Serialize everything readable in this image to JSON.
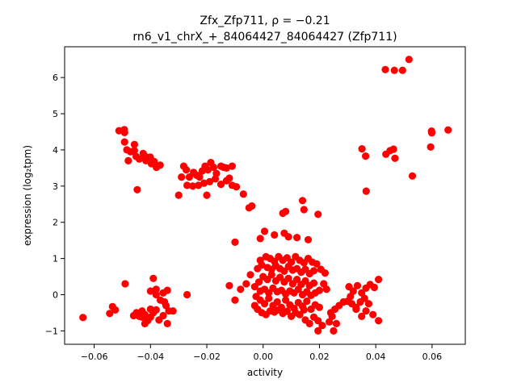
{
  "chart_data": {
    "type": "scatter",
    "title_line1": "Zfx_Zfp711, ρ = −0.21",
    "title_line2": "rn6_v1_chrX_+_84064427_84064427 (Zfp711)",
    "xlabel": "activity",
    "ylabel": "expression (log₂tpm)",
    "xlim": [
      -0.0705,
      0.0718
    ],
    "ylim": [
      -1.37,
      6.85
    ],
    "xticks": [
      {
        "value": -0.06,
        "label": "−0.06"
      },
      {
        "value": -0.04,
        "label": "−0.04"
      },
      {
        "value": -0.02,
        "label": "−0.02"
      },
      {
        "value": 0.0,
        "label": "0.00"
      },
      {
        "value": 0.02,
        "label": "0.02"
      },
      {
        "value": 0.04,
        "label": "0.04"
      },
      {
        "value": 0.06,
        "label": "0.06"
      }
    ],
    "yticks": [
      {
        "value": -1,
        "label": "−1"
      },
      {
        "value": 0,
        "label": "0"
      },
      {
        "value": 1,
        "label": "1"
      },
      {
        "value": 2,
        "label": "2"
      },
      {
        "value": 3,
        "label": "3"
      },
      {
        "value": 4,
        "label": "4"
      },
      {
        "value": 5,
        "label": "5"
      },
      {
        "value": 6,
        "label": "6"
      }
    ],
    "grid": false,
    "legend": "none",
    "marker_color": "#ff0000",
    "points": [
      [
        0.0518,
        6.5
      ],
      [
        0.0434,
        6.22
      ],
      [
        0.0466,
        6.2
      ],
      [
        0.0495,
        6.2
      ],
      [
        0.0657,
        4.55
      ],
      [
        0.0598,
        4.52
      ],
      [
        0.0599,
        4.47
      ],
      [
        0.0595,
        4.08
      ],
      [
        0.053,
        3.28
      ],
      [
        0.0463,
        4.02
      ],
      [
        0.0451,
        3.98
      ],
      [
        0.0436,
        3.88
      ],
      [
        0.0468,
        3.77
      ],
      [
        0.0351,
        4.03
      ],
      [
        0.0364,
        3.83
      ],
      [
        0.0366,
        2.86
      ],
      [
        -0.0512,
        4.53
      ],
      [
        -0.0493,
        4.56
      ],
      [
        -0.0492,
        4.48
      ],
      [
        -0.0492,
        4.22
      ],
      [
        -0.0484,
        4.0
      ],
      [
        -0.0471,
        3.95
      ],
      [
        -0.0457,
        4.15
      ],
      [
        -0.0457,
        3.98
      ],
      [
        -0.0479,
        3.7
      ],
      [
        -0.0451,
        3.82
      ],
      [
        -0.044,
        3.75
      ],
      [
        -0.0426,
        3.9
      ],
      [
        -0.0419,
        3.82
      ],
      [
        -0.0416,
        3.7
      ],
      [
        -0.0401,
        3.8
      ],
      [
        -0.0397,
        3.62
      ],
      [
        -0.0387,
        3.68
      ],
      [
        -0.0379,
        3.52
      ],
      [
        -0.0366,
        3.58
      ],
      [
        -0.0447,
        2.9
      ],
      [
        -0.0282,
        3.55
      ],
      [
        -0.0273,
        3.45
      ],
      [
        -0.0262,
        3.25
      ],
      [
        -0.0247,
        3.38
      ],
      [
        -0.0236,
        3.3
      ],
      [
        -0.0226,
        3.25
      ],
      [
        -0.0216,
        3.42
      ],
      [
        -0.0206,
        3.55
      ],
      [
        -0.0196,
        3.45
      ],
      [
        -0.0186,
        3.65
      ],
      [
        -0.0176,
        3.52
      ],
      [
        -0.0166,
        3.35
      ],
      [
        -0.015,
        3.55
      ],
      [
        -0.014,
        3.52
      ],
      [
        -0.013,
        3.5
      ],
      [
        -0.012,
        3.22
      ],
      [
        -0.011,
        3.55
      ],
      [
        -0.029,
        3.25
      ],
      [
        -0.027,
        3.02
      ],
      [
        -0.025,
        3.0
      ],
      [
        -0.023,
        3.02
      ],
      [
        -0.021,
        3.08
      ],
      [
        -0.019,
        3.12
      ],
      [
        -0.017,
        3.2
      ],
      [
        -0.015,
        3.05
      ],
      [
        -0.013,
        3.15
      ],
      [
        -0.011,
        3.02
      ],
      [
        -0.0095,
        2.98
      ],
      [
        -0.03,
        2.75
      ],
      [
        -0.02,
        2.75
      ],
      [
        -0.007,
        2.78
      ],
      [
        -0.004,
        2.45
      ],
      [
        -0.005,
        2.4
      ],
      [
        0.014,
        2.6
      ],
      [
        0.0145,
        2.35
      ],
      [
        0.0195,
        2.22
      ],
      [
        0.007,
        2.25
      ],
      [
        0.008,
        2.3
      ],
      [
        0.0005,
        1.75
      ],
      [
        0.004,
        1.65
      ],
      [
        0.0075,
        1.7
      ],
      [
        0.012,
        1.58
      ],
      [
        0.016,
        1.52
      ],
      [
        -0.001,
        1.55
      ],
      [
        -0.01,
        1.45
      ],
      [
        0.009,
        1.6
      ],
      [
        0.001,
        1.05
      ],
      [
        -0.001,
        0.95
      ],
      [
        0.0025,
        1.0
      ],
      [
        0.004,
        0.92
      ],
      [
        0.0055,
        1.05
      ],
      [
        0.007,
        0.95
      ],
      [
        0.0085,
        1.02
      ],
      [
        0.01,
        0.9
      ],
      [
        0.0115,
        1.05
      ],
      [
        0.013,
        0.95
      ],
      [
        0.0145,
        0.88
      ],
      [
        0.016,
        1.0
      ],
      [
        0.0175,
        0.9
      ],
      [
        0.019,
        0.85
      ],
      [
        0.0205,
        0.7
      ],
      [
        0.022,
        0.6
      ],
      [
        0.0015,
        0.75
      ],
      [
        0.003,
        0.7
      ],
      [
        0.0045,
        0.8
      ],
      [
        0.006,
        0.72
      ],
      [
        0.0075,
        0.65
      ],
      [
        0.009,
        0.78
      ],
      [
        0.0105,
        0.68
      ],
      [
        0.012,
        0.72
      ],
      [
        0.0135,
        0.62
      ],
      [
        0.015,
        0.7
      ],
      [
        0.0165,
        0.58
      ],
      [
        0.018,
        0.66
      ],
      [
        -0.0005,
        0.82
      ],
      [
        -0.002,
        0.72
      ],
      [
        0.0,
        0.5
      ],
      [
        0.0015,
        0.42
      ],
      [
        0.003,
        0.55
      ],
      [
        0.0045,
        0.38
      ],
      [
        0.006,
        0.48
      ],
      [
        0.0075,
        0.35
      ],
      [
        0.009,
        0.45
      ],
      [
        0.0105,
        0.3
      ],
      [
        0.012,
        0.42
      ],
      [
        0.0135,
        0.28
      ],
      [
        0.015,
        0.38
      ],
      [
        0.0165,
        0.25
      ],
      [
        0.018,
        0.32
      ],
      [
        -0.0015,
        0.35
      ],
      [
        -0.003,
        0.22
      ],
      [
        -0.0045,
        0.55
      ],
      [
        -0.006,
        0.3
      ],
      [
        -0.012,
        0.25
      ],
      [
        -0.008,
        0.15
      ],
      [
        -0.001,
        0.1
      ],
      [
        0.0005,
        0.15
      ],
      [
        0.002,
        0.05
      ],
      [
        0.0035,
        0.18
      ],
      [
        0.005,
        0.08
      ],
      [
        0.0065,
        0.12
      ],
      [
        0.008,
        0.02
      ],
      [
        0.0095,
        0.1
      ],
      [
        0.011,
        0.05
      ],
      [
        0.0125,
        0.15
      ],
      [
        0.014,
        0.0
      ],
      [
        0.0155,
        0.08
      ],
      [
        0.017,
        -0.02
      ],
      [
        0.0185,
        0.05
      ],
      [
        0.02,
        0.12
      ],
      [
        0.0215,
        0.3
      ],
      [
        0.0225,
        0.15
      ],
      [
        -0.01,
        -0.15
      ],
      [
        -0.0025,
        -0.05
      ],
      [
        -0.001,
        -0.15
      ],
      [
        0.0005,
        -0.25
      ],
      [
        0.002,
        -0.1
      ],
      [
        0.0035,
        -0.3
      ],
      [
        0.005,
        -0.2
      ],
      [
        0.0065,
        -0.35
      ],
      [
        0.008,
        -0.15
      ],
      [
        0.0095,
        -0.28
      ],
      [
        0.011,
        -0.38
      ],
      [
        0.0125,
        -0.22
      ],
      [
        0.014,
        -0.32
      ],
      [
        0.0155,
        -0.18
      ],
      [
        0.017,
        -0.4
      ],
      [
        0.0185,
        -0.28
      ],
      [
        0.02,
        -0.35
      ],
      [
        -0.002,
        -0.4
      ],
      [
        -0.0005,
        -0.5
      ],
      [
        0.001,
        -0.55
      ],
      [
        0.0025,
        -0.45
      ],
      [
        0.004,
        -0.48
      ],
      [
        0.0055,
        -0.42
      ],
      [
        0.007,
        -0.52
      ],
      [
        0.0085,
        -0.46
      ],
      [
        0.01,
        -0.6
      ],
      [
        0.0115,
        -0.5
      ],
      [
        0.013,
        -0.55
      ],
      [
        0.0145,
        -0.42
      ],
      [
        -0.003,
        -0.3
      ],
      [
        0.015,
        -0.7
      ],
      [
        0.0165,
        -0.8
      ],
      [
        0.018,
        -0.62
      ],
      [
        0.0195,
        -0.72
      ],
      [
        0.021,
        -0.85
      ],
      [
        0.0195,
        -1.0
      ],
      [
        0.025,
        -1.0
      ],
      [
        0.0235,
        -0.75
      ],
      [
        0.026,
        -0.8
      ],
      [
        0.0245,
        -0.6
      ],
      [
        0.0255,
        -0.4
      ],
      [
        0.027,
        -0.3
      ],
      [
        0.0285,
        -0.2
      ],
      [
        0.03,
        -0.18
      ],
      [
        0.0315,
        -0.25
      ],
      [
        0.033,
        -0.35
      ],
      [
        0.0345,
        -0.2
      ],
      [
        0.036,
        -0.1
      ],
      [
        0.0375,
        -0.25
      ],
      [
        0.039,
        -0.55
      ],
      [
        0.0305,
        0.22
      ],
      [
        0.032,
        0.1
      ],
      [
        0.0335,
        0.25
      ],
      [
        0.035,
        0.05
      ],
      [
        0.0365,
        0.18
      ],
      [
        0.038,
        0.28
      ],
      [
        0.0395,
        0.2
      ],
      [
        0.041,
        0.42
      ],
      [
        0.033,
        -0.4
      ],
      [
        0.035,
        -0.6
      ],
      [
        0.0365,
        -0.45
      ],
      [
        0.041,
        -0.72
      ],
      [
        0.031,
        -0.05
      ],
      [
        0.024,
        -0.5
      ],
      [
        -0.064,
        -0.63
      ],
      [
        -0.0545,
        -0.52
      ],
      [
        -0.0535,
        -0.33
      ],
      [
        -0.0525,
        -0.42
      ],
      [
        -0.049,
        0.3
      ],
      [
        -0.045,
        -0.5
      ],
      [
        -0.044,
        -0.6
      ],
      [
        -0.043,
        -0.45
      ],
      [
        -0.042,
        -0.55
      ],
      [
        -0.041,
        -0.72
      ],
      [
        -0.04,
        -0.62
      ],
      [
        -0.039,
        -0.5
      ],
      [
        -0.038,
        -0.42
      ],
      [
        -0.037,
        -0.7
      ],
      [
        -0.0355,
        -0.58
      ],
      [
        -0.0345,
        -0.3
      ],
      [
        -0.0335,
        -0.45
      ],
      [
        -0.042,
        -0.8
      ],
      [
        -0.04,
        -0.4
      ],
      [
        -0.0365,
        -0.15
      ],
      [
        -0.0355,
        0.05
      ],
      [
        -0.034,
        0.12
      ],
      [
        -0.038,
        0.0
      ],
      [
        -0.04,
        0.1
      ],
      [
        -0.039,
        0.45
      ],
      [
        -0.038,
        0.15
      ],
      [
        -0.035,
        -0.2
      ],
      [
        -0.032,
        -0.45
      ],
      [
        -0.027,
        0.0
      ],
      [
        -0.034,
        -0.8
      ],
      [
        -0.043,
        -0.62
      ],
      [
        -0.046,
        -0.58
      ]
    ]
  }
}
